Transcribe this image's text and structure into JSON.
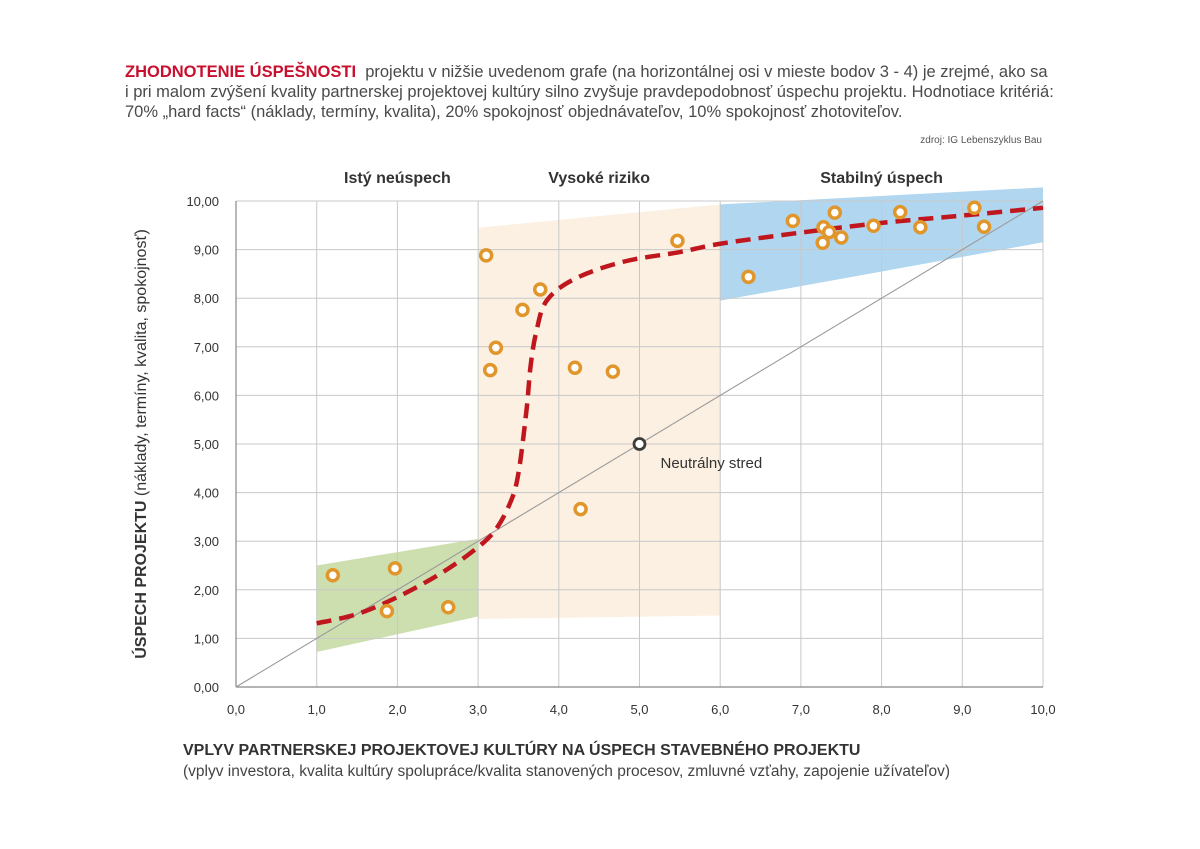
{
  "intro": {
    "highlight": "ZHODNOTENIE ÚSPEŠNOSTI",
    "text": "projektu v nižšie uvedenom grafe (na horizontálnej osi v mieste bodov 3 - 4) je zrejmé, ako sa i pri malom zvýšení kvality partnerskej projektovej kultúry silno zvyšuje pravdepodobnosť úspechu projektu. Hodnotiace kritériá: 70% „hard facts“ (náklady, termíny, kvalita), 20% spokojnosť objednávateľov, 10% spokojnosť zhotoviteľov."
  },
  "source": "zdroj: IG Lebenszyklus Bau",
  "chart_data": {
    "type": "scatter",
    "zones": [
      {
        "label": "Istý neúspech",
        "x_range": [
          1,
          3
        ],
        "color": "#c9dba6"
      },
      {
        "label": "Vysoké riziko",
        "x_range": [
          3,
          6
        ],
        "color": "#fbefdf"
      },
      {
        "label": "Stabilný úspech",
        "x_range": [
          6,
          10
        ],
        "color": "#a9d1ee"
      }
    ],
    "xlabel": "VPLYV PARTNERSKEJ PROJEKTOVEJ KULTÚRY NA ÚSPECH STAVEBNÉHO PROJEKTU",
    "xlabel_sub": "(vplyv investora, kvalita kultúry spolupráce/kvalita stanovených procesov, zmluvné vzťahy, zapojenie užívateľov)",
    "ylabel_bold": "ÚSPECH PROJEKTU",
    "ylabel_rest": " (náklady, termíny, kvalita, spokojnosť)",
    "xlim": [
      0,
      10
    ],
    "ylim": [
      0,
      10
    ],
    "x_ticks": [
      "0,0",
      "1,0",
      "2,0",
      "3,0",
      "4,0",
      "5,0",
      "6,0",
      "7,0",
      "8,0",
      "9,0",
      "10,0"
    ],
    "y_ticks": [
      "0,00",
      "1,00",
      "2,00",
      "3,00",
      "4,00",
      "5,00",
      "6,00",
      "7,00",
      "8,00",
      "9,00",
      "10,00"
    ],
    "grid": true,
    "points": [
      {
        "x": 1.2,
        "y": 2.3
      },
      {
        "x": 1.97,
        "y": 2.44
      },
      {
        "x": 1.87,
        "y": 1.56
      },
      {
        "x": 2.63,
        "y": 1.64
      },
      {
        "x": 3.1,
        "y": 8.88
      },
      {
        "x": 3.15,
        "y": 6.52
      },
      {
        "x": 3.22,
        "y": 6.98
      },
      {
        "x": 3.55,
        "y": 7.76
      },
      {
        "x": 3.77,
        "y": 8.18
      },
      {
        "x": 4.2,
        "y": 6.57
      },
      {
        "x": 4.67,
        "y": 6.49
      },
      {
        "x": 4.27,
        "y": 3.66
      },
      {
        "x": 5.47,
        "y": 9.18
      },
      {
        "x": 6.35,
        "y": 8.44
      },
      {
        "x": 6.9,
        "y": 9.59
      },
      {
        "x": 7.28,
        "y": 9.46
      },
      {
        "x": 7.27,
        "y": 9.14
      },
      {
        "x": 7.35,
        "y": 9.36
      },
      {
        "x": 7.42,
        "y": 9.76
      },
      {
        "x": 7.5,
        "y": 9.25
      },
      {
        "x": 7.9,
        "y": 9.49
      },
      {
        "x": 8.23,
        "y": 9.77
      },
      {
        "x": 8.48,
        "y": 9.46
      },
      {
        "x": 9.15,
        "y": 9.86
      },
      {
        "x": 9.27,
        "y": 9.47
      }
    ],
    "trend_curve": [
      [
        1.0,
        1.31
      ],
      [
        1.5,
        1.5
      ],
      [
        2.0,
        1.85
      ],
      [
        2.5,
        2.3
      ],
      [
        2.9,
        2.75
      ],
      [
        3.2,
        3.2
      ],
      [
        3.4,
        3.8
      ],
      [
        3.5,
        4.4
      ],
      [
        3.6,
        5.7
      ],
      [
        3.65,
        6.6
      ],
      [
        3.72,
        7.3
      ],
      [
        3.85,
        7.95
      ],
      [
        4.2,
        8.4
      ],
      [
        4.8,
        8.75
      ],
      [
        5.5,
        8.95
      ],
      [
        6.0,
        9.12
      ],
      [
        7.0,
        9.35
      ],
      [
        8.0,
        9.55
      ],
      [
        9.0,
        9.7
      ],
      [
        10.0,
        9.86
      ]
    ],
    "neutral_point": {
      "x": 5.0,
      "y": 5.0,
      "label": "Neutrálny stred"
    },
    "colors": {
      "points": "#e0962a",
      "trend": "#c0161e",
      "diagonal": "#9a9a9a",
      "grid": "#c8c8c8"
    }
  }
}
